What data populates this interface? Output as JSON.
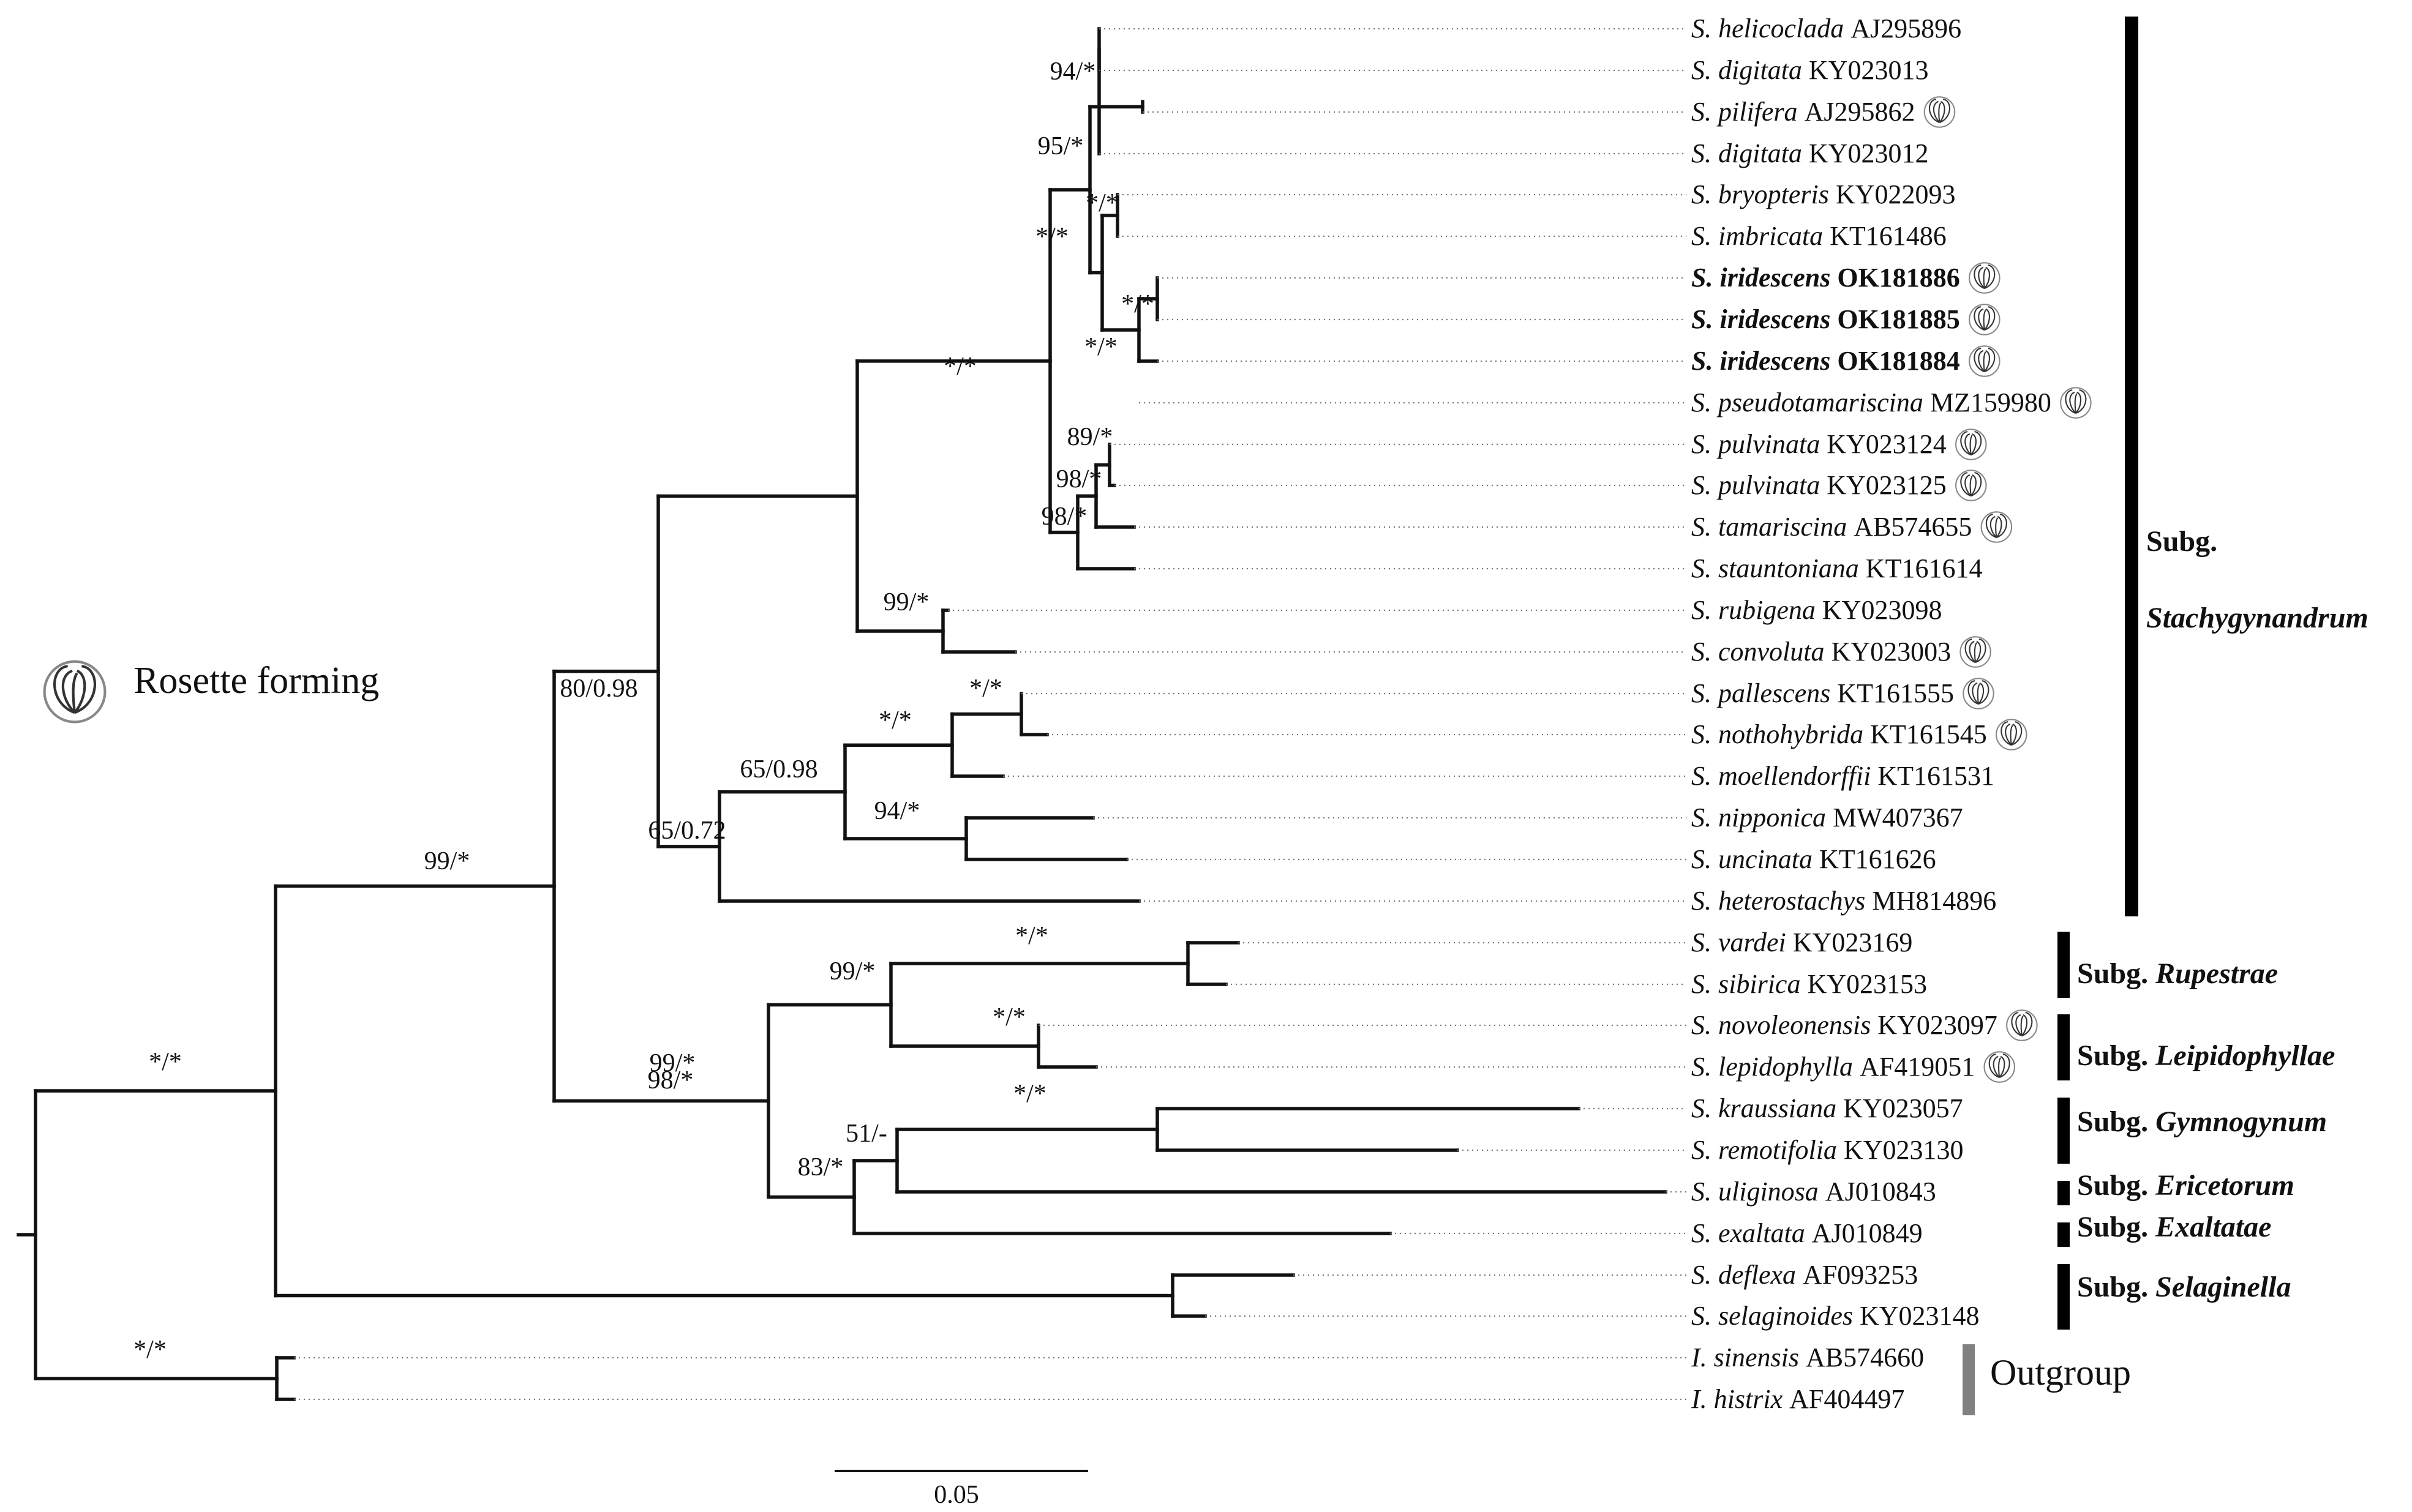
{
  "legend": {
    "rosette_label": "Rosette forming"
  },
  "scale_bar": {
    "label": "0.05"
  },
  "taxa": [
    {
      "genus": "S. helicoclada",
      "acc": "AJ295896",
      "bold": false,
      "rosette": false
    },
    {
      "genus": "S. digitata",
      "acc": "KY023013",
      "bold": false,
      "rosette": false
    },
    {
      "genus": "S. pilifera",
      "acc": "AJ295862",
      "bold": false,
      "rosette": true
    },
    {
      "genus": "S. digitata",
      "acc": "KY023012",
      "bold": false,
      "rosette": false
    },
    {
      "genus": "S. bryopteris",
      "acc": "KY022093",
      "bold": false,
      "rosette": false
    },
    {
      "genus": "S. imbricata",
      "acc": "KT161486",
      "bold": false,
      "rosette": false
    },
    {
      "genus": "S. iridescens",
      "acc": "OK181886",
      "bold": true,
      "rosette": true
    },
    {
      "genus": "S. iridescens",
      "acc": "OK181885",
      "bold": true,
      "rosette": true
    },
    {
      "genus": "S. iridescens",
      "acc": "OK181884",
      "bold": true,
      "rosette": true
    },
    {
      "genus": "S. pseudotamariscina",
      "acc": "MZ159980",
      "bold": false,
      "rosette": true
    },
    {
      "genus": "S. pulvinata",
      "acc": "KY023124",
      "bold": false,
      "rosette": true
    },
    {
      "genus": "S. pulvinata",
      "acc": "KY023125",
      "bold": false,
      "rosette": true
    },
    {
      "genus": "S. tamariscina",
      "acc": "AB574655",
      "bold": false,
      "rosette": true
    },
    {
      "genus": "S. stauntoniana",
      "acc": "KT161614",
      "bold": false,
      "rosette": false
    },
    {
      "genus": "S. rubigena",
      "acc": "KY023098",
      "bold": false,
      "rosette": false
    },
    {
      "genus": "S. convoluta",
      "acc": "KY023003",
      "bold": false,
      "rosette": true
    },
    {
      "genus": "S. pallescens",
      "acc": "KT161555",
      "bold": false,
      "rosette": true
    },
    {
      "genus": "S. nothohybrida",
      "acc": "KT161545",
      "bold": false,
      "rosette": true
    },
    {
      "genus": "S. moellendorffii",
      "acc": "KT161531",
      "bold": false,
      "rosette": false
    },
    {
      "genus": "S. nipponica",
      "acc": "MW407367",
      "bold": false,
      "rosette": false
    },
    {
      "genus": "S. uncinata",
      "acc": "KT161626",
      "bold": false,
      "rosette": false
    },
    {
      "genus": "S. heterostachys",
      "acc": "MH814896",
      "bold": false,
      "rosette": false
    },
    {
      "genus": "S. vardei",
      "acc": "KY023169",
      "bold": false,
      "rosette": false
    },
    {
      "genus": "S. sibirica",
      "acc": "KY023153",
      "bold": false,
      "rosette": false
    },
    {
      "genus": "S. novoleonensis",
      "acc": "KY023097",
      "bold": false,
      "rosette": true
    },
    {
      "genus": "S. lepidophylla",
      "acc": "AF419051",
      "bold": false,
      "rosette": true
    },
    {
      "genus": "S. kraussiana",
      "acc": "KY023057",
      "bold": false,
      "rosette": false
    },
    {
      "genus": "S. remotifolia",
      "acc": "KY023130",
      "bold": false,
      "rosette": false
    },
    {
      "genus": "S. uliginosa",
      "acc": "AJ010843",
      "bold": false,
      "rosette": false
    },
    {
      "genus": "S. exaltata",
      "acc": "AJ010849",
      "bold": false,
      "rosette": false
    },
    {
      "genus": "S. deflexa",
      "acc": "AF093253",
      "bold": false,
      "rosette": false
    },
    {
      "genus": "S. selaginoides",
      "acc": "KY023148",
      "bold": false,
      "rosette": false
    },
    {
      "genus": "I. sinensis",
      "acc": "AB574660",
      "bold": false,
      "rosette": false
    },
    {
      "genus": "I. histrix",
      "acc": "AF404497",
      "bold": false,
      "rosette": false
    }
  ],
  "supports": [
    "94/*",
    "95/*",
    "*/*",
    "*/*",
    "*/*",
    "*/*",
    "89/*",
    "98/*",
    "98/*",
    "*/*",
    "99/*",
    "80/0.98",
    "65/0.98",
    "*/*",
    "*/*",
    "94/*",
    "65/0.72",
    "98/*",
    "*/*",
    "99/*",
    "*/*",
    "*/*",
    "99/*",
    "51/-",
    "83/*",
    "99/*",
    "*/*",
    "*/*"
  ],
  "groups": [
    {
      "prefix": "Subg.",
      "name": "Stachygynandrum",
      "color": "#000000"
    },
    {
      "prefix": "Subg.",
      "name": "Rupestrae",
      "color": "#000000"
    },
    {
      "prefix": "Subg.",
      "name": "Leipidophyllae",
      "color": "#000000"
    },
    {
      "prefix": "Subg.",
      "name": "Gymnogynum",
      "color": "#000000"
    },
    {
      "prefix": "Subg.",
      "name": "Ericetorum",
      "color": "#000000"
    },
    {
      "prefix": "Subg.",
      "name": "Exaltatae",
      "color": "#000000"
    },
    {
      "prefix": "Subg.",
      "name": "Selaginella",
      "color": "#000000"
    },
    {
      "prefix": "",
      "name": "Outgroup",
      "color": "#808080"
    }
  ]
}
